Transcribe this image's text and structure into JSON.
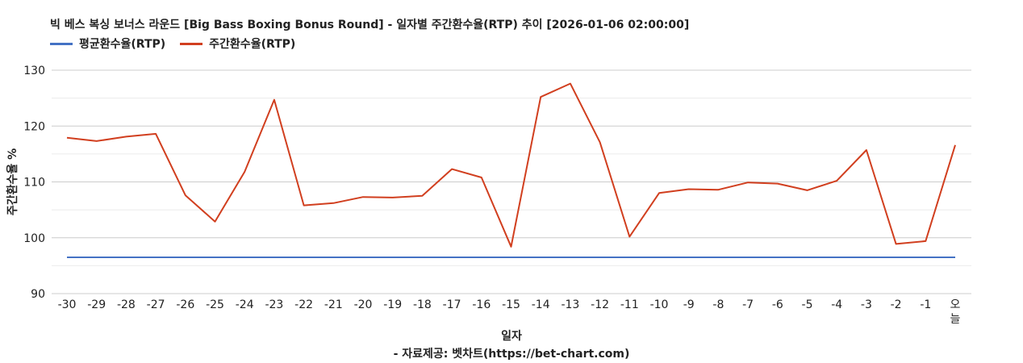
{
  "chart_data": {
    "type": "line",
    "title": "빅 베스 복싱 보너스 라운드 [Big Bass Boxing Bonus Round] - 일자별 주간환수율(RTP) 추이 [2026-01-06 02:00:00]",
    "xlabel": "일자",
    "ylabel": "주간환수율 %",
    "ylim": [
      90,
      130
    ],
    "yticks": [
      90,
      100,
      110,
      120,
      130
    ],
    "grid": true,
    "legend_position": "top-left",
    "categories": [
      "-30",
      "-29",
      "-28",
      "-27",
      "-26",
      "-25",
      "-24",
      "-23",
      "-22",
      "-21",
      "-20",
      "-19",
      "-18",
      "-17",
      "-16",
      "-15",
      "-14",
      "-13",
      "-12",
      "-11",
      "-10",
      "-9",
      "-8",
      "-7",
      "-6",
      "-5",
      "-4",
      "-3",
      "-2",
      "-1",
      "오늘"
    ],
    "series": [
      {
        "name": "평균환수율(RTP)",
        "color": "#4472C4",
        "values": [
          96.5,
          96.5,
          96.5,
          96.5,
          96.5,
          96.5,
          96.5,
          96.5,
          96.5,
          96.5,
          96.5,
          96.5,
          96.5,
          96.5,
          96.5,
          96.5,
          96.5,
          96.5,
          96.5,
          96.5,
          96.5,
          96.5,
          96.5,
          96.5,
          96.5,
          96.5,
          96.5,
          96.5,
          96.5,
          96.5,
          96.5
        ]
      },
      {
        "name": "주간환수율(RTP)",
        "color": "#D13F1F",
        "values": [
          117.9,
          117.3,
          118.1,
          118.6,
          107.6,
          102.9,
          111.8,
          124.7,
          105.8,
          106.2,
          107.3,
          107.2,
          107.5,
          112.3,
          110.8,
          98.4,
          125.2,
          127.6,
          117.1,
          100.2,
          108.0,
          108.7,
          108.6,
          109.9,
          109.7,
          108.5,
          110.2,
          115.7,
          98.9,
          99.4,
          116.6
        ]
      }
    ]
  },
  "footer": {
    "credit": "- 자료제공: 벳차트(https://bet-chart.com)"
  }
}
